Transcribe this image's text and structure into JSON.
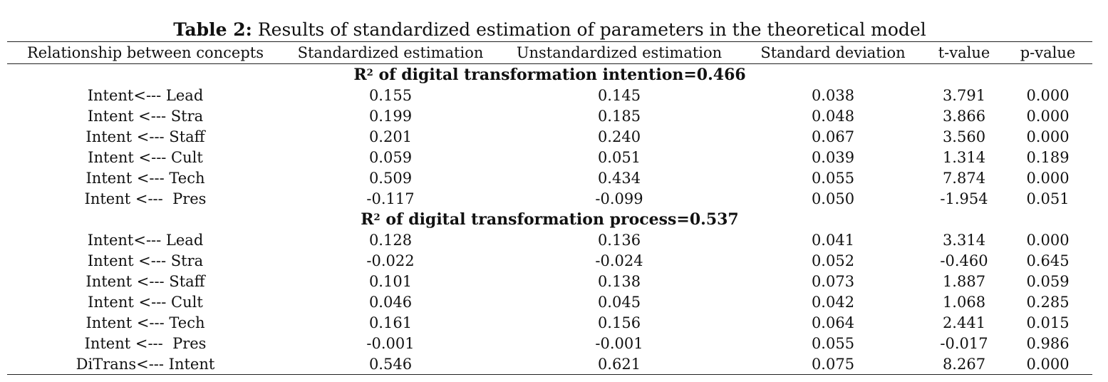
{
  "caption": {
    "label": "Table 2:",
    "text": " Results of standardized estimation of parameters in the theoretical model"
  },
  "headers": [
    "Relationship between concepts",
    "Standardized estimation",
    "Unstandardized estimation",
    "Standard deviation",
    "t-value",
    "p-value"
  ],
  "sections": [
    {
      "r_label": "R",
      "r_sup": "2",
      "title": " of digital transformation intention=0.466",
      "rows": [
        [
          "Intent<--- Lead",
          "0.155",
          "0.145",
          "0.038",
          "3.791",
          "0.000"
        ],
        [
          "Intent <--- Stra",
          "0.199",
          "0.185",
          "0.048",
          "3.866",
          "0.000"
        ],
        [
          "Intent <--- Staff",
          "0.201",
          "0.240",
          "0.067",
          "3.560",
          "0.000"
        ],
        [
          "Intent <--- Cult",
          "0.059",
          "0.051",
          "0.039",
          "1.314",
          "0.189"
        ],
        [
          "Intent <--- Tech",
          "0.509",
          "0.434",
          "0.055",
          "7.874",
          "0.000"
        ],
        [
          "Intent <---  Pres",
          "-0.117",
          "-0.099",
          "0.050",
          "-1.954",
          "0.051"
        ]
      ]
    },
    {
      "r_label": "R",
      "r_sup": "2",
      "title": " of digital transformation process=0.537",
      "rows": [
        [
          "Intent<--- Lead",
          "0.128",
          "0.136",
          "0.041",
          "3.314",
          "0.000"
        ],
        [
          "Intent <--- Stra",
          "-0.022",
          "-0.024",
          "0.052",
          "-0.460",
          "0.645"
        ],
        [
          "Intent <--- Staff",
          "0.101",
          "0.138",
          "0.073",
          "1.887",
          "0.059"
        ],
        [
          "Intent <--- Cult",
          "0.046",
          "0.045",
          "0.042",
          "1.068",
          "0.285"
        ],
        [
          "Intent <--- Tech",
          "0.161",
          "0.156",
          "0.064",
          "2.441",
          "0.015"
        ],
        [
          "Intent <---  Pres",
          "-0.001",
          "-0.001",
          "0.055",
          "-0.017",
          "0.986"
        ],
        [
          "DiTrans<--- Intent",
          "0.546",
          "0.621",
          "0.075",
          "8.267",
          "0.000"
        ]
      ]
    }
  ]
}
